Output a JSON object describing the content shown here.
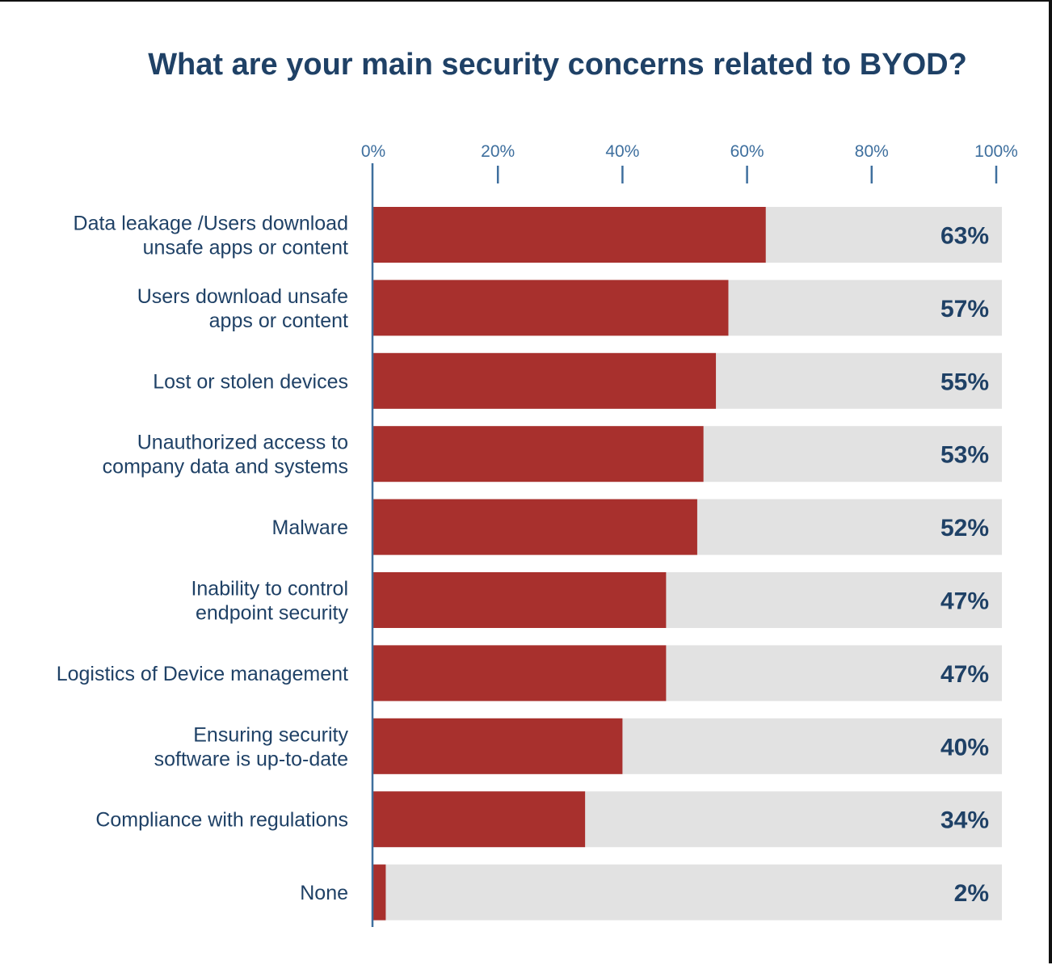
{
  "chart_data": {
    "type": "bar",
    "orientation": "horizontal",
    "title": "What are your main security concerns related to BYOD?",
    "xlabel": "",
    "ylabel": "",
    "xlim": [
      0,
      100
    ],
    "x_ticks": [
      "0%",
      "20%",
      "40%",
      "60%",
      "80%",
      "100%"
    ],
    "x_tick_values": [
      0,
      20,
      40,
      60,
      80,
      100
    ],
    "grid": false,
    "legend": "none",
    "categories": [
      [
        "Data leakage /Users download",
        "unsafe apps or content"
      ],
      [
        "Users download unsafe",
        "apps or content"
      ],
      [
        "Lost or stolen devices"
      ],
      [
        "Unauthorized access to",
        "company data and systems"
      ],
      [
        "Malware"
      ],
      [
        "Inability to control",
        "endpoint security"
      ],
      [
        "Logistics of Device management"
      ],
      [
        "Ensuring security",
        "software is up-to-date"
      ],
      [
        "Compliance with regulations"
      ],
      [
        "None"
      ]
    ],
    "values": [
      63,
      57,
      55,
      53,
      52,
      47,
      47,
      40,
      34,
      2
    ],
    "value_labels": [
      "63%",
      "57%",
      "55%",
      "53%",
      "52%",
      "47%",
      "47%",
      "40%",
      "34%",
      "2%"
    ],
    "colors": {
      "bar": "#a8302d",
      "track": "#e2e2e2",
      "axis": "#3e6f9e",
      "text": "#1f4166"
    }
  }
}
